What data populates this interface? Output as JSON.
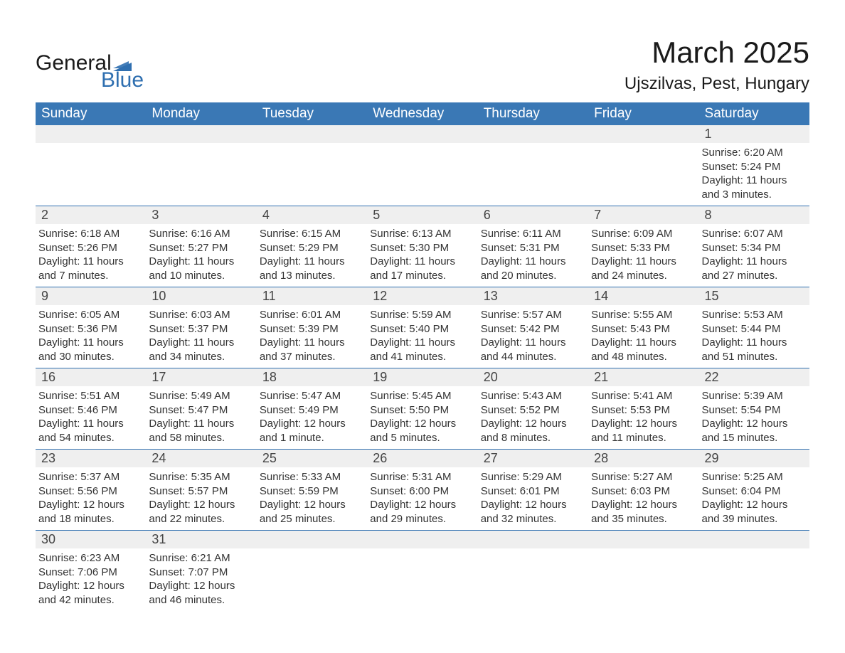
{
  "brand": {
    "name_left": "General",
    "name_right": "Blue",
    "flag_color": "#2f6fb0"
  },
  "title": "March 2025",
  "location": "Ujszilvas, Pest, Hungary",
  "colors": {
    "header_bg": "#3a78b5",
    "header_text": "#ffffff",
    "row_border": "#2f6fb0",
    "daynum_bg": "#efefef",
    "text": "#333333",
    "background": "#ffffff"
  },
  "weekdays": [
    "Sunday",
    "Monday",
    "Tuesday",
    "Wednesday",
    "Thursday",
    "Friday",
    "Saturday"
  ],
  "weeks": [
    [
      null,
      null,
      null,
      null,
      null,
      null,
      {
        "day": "1",
        "sunrise": "6:20 AM",
        "sunset": "5:24 PM",
        "daylight": "11 hours and 3 minutes."
      }
    ],
    [
      {
        "day": "2",
        "sunrise": "6:18 AM",
        "sunset": "5:26 PM",
        "daylight": "11 hours and 7 minutes."
      },
      {
        "day": "3",
        "sunrise": "6:16 AM",
        "sunset": "5:27 PM",
        "daylight": "11 hours and 10 minutes."
      },
      {
        "day": "4",
        "sunrise": "6:15 AM",
        "sunset": "5:29 PM",
        "daylight": "11 hours and 13 minutes."
      },
      {
        "day": "5",
        "sunrise": "6:13 AM",
        "sunset": "5:30 PM",
        "daylight": "11 hours and 17 minutes."
      },
      {
        "day": "6",
        "sunrise": "6:11 AM",
        "sunset": "5:31 PM",
        "daylight": "11 hours and 20 minutes."
      },
      {
        "day": "7",
        "sunrise": "6:09 AM",
        "sunset": "5:33 PM",
        "daylight": "11 hours and 24 minutes."
      },
      {
        "day": "8",
        "sunrise": "6:07 AM",
        "sunset": "5:34 PM",
        "daylight": "11 hours and 27 minutes."
      }
    ],
    [
      {
        "day": "9",
        "sunrise": "6:05 AM",
        "sunset": "5:36 PM",
        "daylight": "11 hours and 30 minutes."
      },
      {
        "day": "10",
        "sunrise": "6:03 AM",
        "sunset": "5:37 PM",
        "daylight": "11 hours and 34 minutes."
      },
      {
        "day": "11",
        "sunrise": "6:01 AM",
        "sunset": "5:39 PM",
        "daylight": "11 hours and 37 minutes."
      },
      {
        "day": "12",
        "sunrise": "5:59 AM",
        "sunset": "5:40 PM",
        "daylight": "11 hours and 41 minutes."
      },
      {
        "day": "13",
        "sunrise": "5:57 AM",
        "sunset": "5:42 PM",
        "daylight": "11 hours and 44 minutes."
      },
      {
        "day": "14",
        "sunrise": "5:55 AM",
        "sunset": "5:43 PM",
        "daylight": "11 hours and 48 minutes."
      },
      {
        "day": "15",
        "sunrise": "5:53 AM",
        "sunset": "5:44 PM",
        "daylight": "11 hours and 51 minutes."
      }
    ],
    [
      {
        "day": "16",
        "sunrise": "5:51 AM",
        "sunset": "5:46 PM",
        "daylight": "11 hours and 54 minutes."
      },
      {
        "day": "17",
        "sunrise": "5:49 AM",
        "sunset": "5:47 PM",
        "daylight": "11 hours and 58 minutes."
      },
      {
        "day": "18",
        "sunrise": "5:47 AM",
        "sunset": "5:49 PM",
        "daylight": "12 hours and 1 minute."
      },
      {
        "day": "19",
        "sunrise": "5:45 AM",
        "sunset": "5:50 PM",
        "daylight": "12 hours and 5 minutes."
      },
      {
        "day": "20",
        "sunrise": "5:43 AM",
        "sunset": "5:52 PM",
        "daylight": "12 hours and 8 minutes."
      },
      {
        "day": "21",
        "sunrise": "5:41 AM",
        "sunset": "5:53 PM",
        "daylight": "12 hours and 11 minutes."
      },
      {
        "day": "22",
        "sunrise": "5:39 AM",
        "sunset": "5:54 PM",
        "daylight": "12 hours and 15 minutes."
      }
    ],
    [
      {
        "day": "23",
        "sunrise": "5:37 AM",
        "sunset": "5:56 PM",
        "daylight": "12 hours and 18 minutes."
      },
      {
        "day": "24",
        "sunrise": "5:35 AM",
        "sunset": "5:57 PM",
        "daylight": "12 hours and 22 minutes."
      },
      {
        "day": "25",
        "sunrise": "5:33 AM",
        "sunset": "5:59 PM",
        "daylight": "12 hours and 25 minutes."
      },
      {
        "day": "26",
        "sunrise": "5:31 AM",
        "sunset": "6:00 PM",
        "daylight": "12 hours and 29 minutes."
      },
      {
        "day": "27",
        "sunrise": "5:29 AM",
        "sunset": "6:01 PM",
        "daylight": "12 hours and 32 minutes."
      },
      {
        "day": "28",
        "sunrise": "5:27 AM",
        "sunset": "6:03 PM",
        "daylight": "12 hours and 35 minutes."
      },
      {
        "day": "29",
        "sunrise": "5:25 AM",
        "sunset": "6:04 PM",
        "daylight": "12 hours and 39 minutes."
      }
    ],
    [
      {
        "day": "30",
        "sunrise": "6:23 AM",
        "sunset": "7:06 PM",
        "daylight": "12 hours and 42 minutes."
      },
      {
        "day": "31",
        "sunrise": "6:21 AM",
        "sunset": "7:07 PM",
        "daylight": "12 hours and 46 minutes."
      },
      null,
      null,
      null,
      null,
      null
    ]
  ],
  "labels": {
    "sunrise": "Sunrise: ",
    "sunset": "Sunset: ",
    "daylight": "Daylight: "
  }
}
